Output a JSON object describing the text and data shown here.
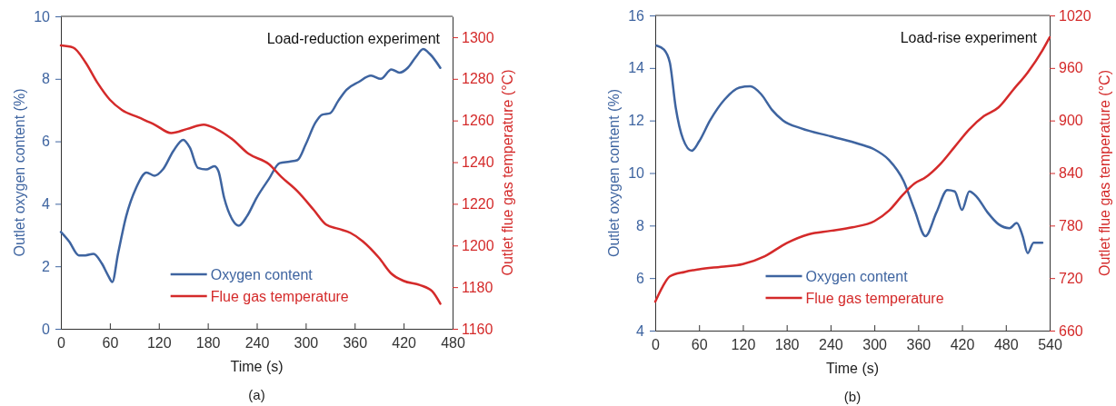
{
  "chart_data": [
    {
      "type": "line",
      "title": "Load-reduction experiment",
      "xlabel": "Time (s)",
      "ylabel": "Outlet oxygen content (%)",
      "y2label": "Outlet flue gas temperature (°C)",
      "annotations": [
        "(a)"
      ],
      "xlim": [
        0,
        480
      ],
      "xticks": [
        0,
        60,
        120,
        180,
        240,
        300,
        360,
        420,
        480
      ],
      "ylim": [
        0,
        10
      ],
      "yticks": [
        0,
        2,
        4,
        6,
        8,
        10
      ],
      "y2lim": [
        1160,
        1310
      ],
      "y2ticks": [
        1160,
        1180,
        1200,
        1220,
        1240,
        1260,
        1280,
        1300
      ],
      "legend": "bottom",
      "grid": false,
      "line_style": "solid",
      "marker": "none",
      "series": [
        {
          "name": "Oxygen content",
          "color": "#3e64a0",
          "x": [
            0,
            10,
            22,
            30,
            40,
            50,
            58,
            63,
            70,
            80,
            92,
            105,
            115,
            125,
            138,
            150,
            158,
            168,
            178,
            188,
            193,
            200,
            210,
            218,
            228,
            240,
            255,
            268,
            280,
            290,
            300,
            312,
            320,
            330,
            340,
            350,
            365,
            380,
            392,
            405,
            415,
            425,
            435,
            444,
            452,
            465
          ],
          "values": [
            3.1,
            2.8,
            2.35,
            2.35,
            2.4,
            2.1,
            1.7,
            1.5,
            2.4,
            3.6,
            4.5,
            5.0,
            4.9,
            5.1,
            5.7,
            6.05,
            5.8,
            5.15,
            5.1,
            5.2,
            5.05,
            4.2,
            3.5,
            3.3,
            3.6,
            4.2,
            4.8,
            5.3,
            5.35,
            5.4,
            5.9,
            6.6,
            6.85,
            6.9,
            7.3,
            7.65,
            7.9,
            8.1,
            8.0,
            8.3,
            8.2,
            8.35,
            8.7,
            8.95,
            8.8,
            8.35
          ]
        },
        {
          "name": "Flue gas temperature",
          "color": "#d42a2a",
          "axis": "y2",
          "x": [
            0,
            15,
            30,
            45,
            60,
            75,
            95,
            115,
            135,
            155,
            175,
            190,
            210,
            230,
            255,
            270,
            290,
            310,
            325,
            340,
            355,
            370,
            390,
            405,
            420,
            440,
            455,
            465
          ],
          "values": [
            1296,
            1295,
            1288,
            1278,
            1270,
            1265,
            1261.5,
            1258,
            1254,
            1256,
            1258,
            1256,
            1251,
            1244,
            1239,
            1233,
            1226,
            1217,
            1210,
            1208,
            1206,
            1202,
            1194,
            1186.5,
            1183,
            1181,
            1178,
            1172
          ]
        }
      ]
    },
    {
      "type": "line",
      "title": "Load-rise experiment",
      "xlabel": "Time (s)",
      "ylabel": "Outlet oxygen content (%)",
      "y2label": "Outlet flue gas temperature (°C)",
      "annotations": [
        "(b)"
      ],
      "xlim": [
        0,
        540
      ],
      "xticks": [
        0,
        60,
        120,
        180,
        240,
        300,
        360,
        420,
        480,
        540
      ],
      "ylim": [
        4,
        16
      ],
      "yticks": [
        4,
        6,
        8,
        10,
        12,
        14,
        16
      ],
      "y2lim": [
        660,
        1020
      ],
      "y2ticks": [
        660,
        720,
        780,
        840,
        900,
        960,
        1020
      ],
      "legend": "bottom",
      "grid": false,
      "line_style": "solid",
      "marker": "none",
      "series": [
        {
          "name": "Oxygen content",
          "color": "#3e64a0",
          "x": [
            2,
            12,
            20,
            28,
            38,
            50,
            60,
            75,
            95,
            115,
            130,
            145,
            160,
            175,
            200,
            240,
            280,
            300,
            320,
            340,
            355,
            370,
            385,
            400,
            410,
            420,
            430,
            440,
            455,
            470,
            485,
            495,
            503,
            510,
            518,
            530
          ],
          "values": [
            14.85,
            14.7,
            14.2,
            12.5,
            11.3,
            10.85,
            11.2,
            12.0,
            12.8,
            13.25,
            13.3,
            13.0,
            12.4,
            12.0,
            11.7,
            11.4,
            11.1,
            10.9,
            10.5,
            9.7,
            8.6,
            7.6,
            8.5,
            9.35,
            9.3,
            8.6,
            9.3,
            9.1,
            8.5,
            8.05,
            7.9,
            8.1,
            7.6,
            6.95,
            7.35,
            7.35
          ]
        },
        {
          "name": "Flue gas temperature",
          "color": "#d42a2a",
          "axis": "y2",
          "x": [
            0,
            10,
            20,
            40,
            60,
            90,
            120,
            150,
            180,
            210,
            240,
            270,
            300,
            320,
            340,
            355,
            370,
            390,
            410,
            430,
            450,
            470,
            490,
            510,
            530,
            540
          ],
          "values": [
            693,
            710,
            722,
            727,
            730,
            733,
            736,
            745,
            760,
            770,
            774,
            778,
            785,
            797,
            816,
            828,
            835,
            850,
            870,
            890,
            905,
            915,
            935,
            955,
            980,
            995
          ]
        }
      ]
    }
  ]
}
